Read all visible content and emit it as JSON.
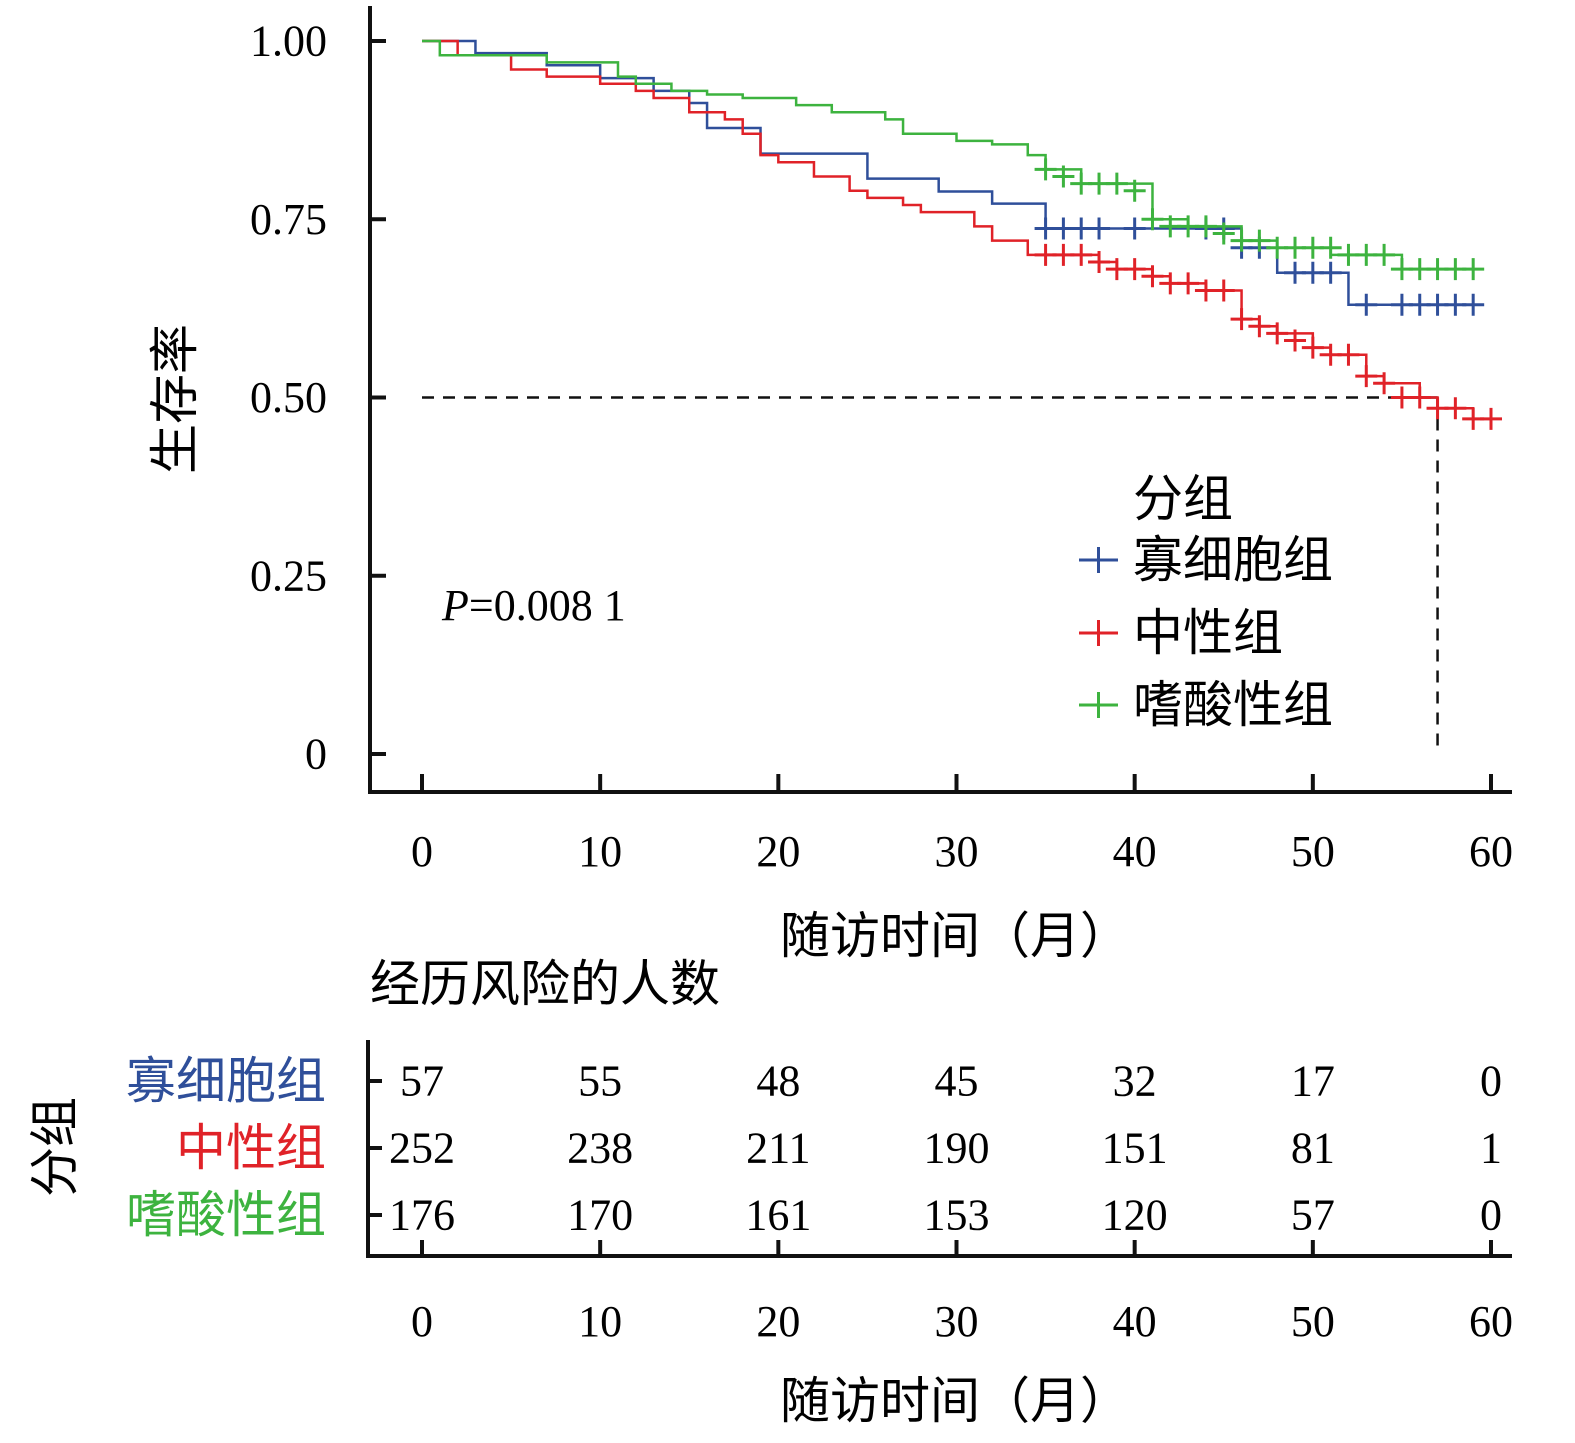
{
  "chart_data": {
    "type": "line",
    "subtype": "kaplan-meier",
    "title": "",
    "xlabel": "随访时间（月）",
    "ylabel": "生存率",
    "xlim": [
      0,
      60
    ],
    "ylim": [
      0,
      1
    ],
    "x_ticks": [
      0,
      10,
      20,
      30,
      40,
      50,
      60
    ],
    "y_ticks": [
      {
        "value": 0,
        "label": "0"
      },
      {
        "value": 0.25,
        "label": "0.25"
      },
      {
        "value": 0.5,
        "label": "0.50"
      },
      {
        "value": 0.75,
        "label": "0.75"
      },
      {
        "value": 1.0,
        "label": "1.00"
      }
    ],
    "grid": false,
    "annotation": {
      "p_italic": "P",
      "p_rest": "=0.008 1"
    },
    "median_reference": {
      "y": 0.5,
      "x": 57
    },
    "legend": {
      "title": "分组",
      "position": "right"
    },
    "series": [
      {
        "name": "寡细胞组",
        "color": "#2f4f9a",
        "steps": [
          [
            0,
            1.0
          ],
          [
            3,
            0.983
          ],
          [
            7,
            0.966
          ],
          [
            10,
            0.948
          ],
          [
            13,
            0.93
          ],
          [
            15,
            0.913
          ],
          [
            16,
            0.878
          ],
          [
            19,
            0.842
          ],
          [
            25,
            0.807
          ],
          [
            29,
            0.789
          ],
          [
            32,
            0.772
          ],
          [
            35,
            0.737
          ],
          [
            46,
            0.71
          ],
          [
            48,
            0.675
          ],
          [
            52,
            0.63
          ],
          [
            59,
            0.63
          ]
        ],
        "censored": [
          [
            35,
            0.737
          ],
          [
            36,
            0.737
          ],
          [
            37,
            0.737
          ],
          [
            38,
            0.737
          ],
          [
            40,
            0.737
          ],
          [
            44,
            0.737
          ],
          [
            45,
            0.737
          ],
          [
            46,
            0.71
          ],
          [
            47,
            0.71
          ],
          [
            49,
            0.675
          ],
          [
            50,
            0.675
          ],
          [
            51,
            0.675
          ],
          [
            53,
            0.63
          ],
          [
            55,
            0.63
          ],
          [
            56,
            0.63
          ],
          [
            57,
            0.63
          ],
          [
            58,
            0.63
          ],
          [
            59,
            0.63
          ]
        ]
      },
      {
        "name": "中性组",
        "color": "#e02228",
        "steps": [
          [
            0,
            1.0
          ],
          [
            2,
            0.98
          ],
          [
            5,
            0.96
          ],
          [
            7,
            0.95
          ],
          [
            10,
            0.94
          ],
          [
            12,
            0.93
          ],
          [
            13,
            0.92
          ],
          [
            15,
            0.9
          ],
          [
            17,
            0.89
          ],
          [
            18,
            0.87
          ],
          [
            19,
            0.84
          ],
          [
            20,
            0.83
          ],
          [
            22,
            0.81
          ],
          [
            24,
            0.79
          ],
          [
            25,
            0.78
          ],
          [
            27,
            0.77
          ],
          [
            28,
            0.76
          ],
          [
            31,
            0.74
          ],
          [
            32,
            0.72
          ],
          [
            34,
            0.7
          ],
          [
            38,
            0.69
          ],
          [
            39,
            0.68
          ],
          [
            41,
            0.67
          ],
          [
            42,
            0.66
          ],
          [
            44,
            0.65
          ],
          [
            46,
            0.61
          ],
          [
            47,
            0.6
          ],
          [
            48,
            0.59
          ],
          [
            50,
            0.57
          ],
          [
            51,
            0.56
          ],
          [
            53,
            0.53
          ],
          [
            54,
            0.52
          ],
          [
            56,
            0.5
          ],
          [
            57,
            0.485
          ],
          [
            59,
            0.47
          ],
          [
            60,
            0.47
          ]
        ],
        "censored": [
          [
            35,
            0.7
          ],
          [
            36,
            0.7
          ],
          [
            37,
            0.7
          ],
          [
            38,
            0.69
          ],
          [
            39,
            0.68
          ],
          [
            40,
            0.68
          ],
          [
            41,
            0.67
          ],
          [
            42,
            0.66
          ],
          [
            43,
            0.66
          ],
          [
            44,
            0.65
          ],
          [
            45,
            0.65
          ],
          [
            46,
            0.61
          ],
          [
            47,
            0.6
          ],
          [
            48,
            0.59
          ],
          [
            49,
            0.58
          ],
          [
            50,
            0.57
          ],
          [
            51,
            0.56
          ],
          [
            52,
            0.56
          ],
          [
            53,
            0.53
          ],
          [
            54,
            0.52
          ],
          [
            55,
            0.5
          ],
          [
            56,
            0.5
          ],
          [
            57,
            0.485
          ],
          [
            58,
            0.485
          ],
          [
            59,
            0.47
          ],
          [
            60,
            0.47
          ]
        ]
      },
      {
        "name": "嗜酸性组",
        "color": "#3db33f",
        "steps": [
          [
            0,
            1.0
          ],
          [
            1,
            0.98
          ],
          [
            7,
            0.97
          ],
          [
            11,
            0.95
          ],
          [
            12,
            0.94
          ],
          [
            14,
            0.93
          ],
          [
            16,
            0.925
          ],
          [
            18,
            0.92
          ],
          [
            21,
            0.91
          ],
          [
            23,
            0.9
          ],
          [
            26,
            0.89
          ],
          [
            27,
            0.87
          ],
          [
            30,
            0.86
          ],
          [
            32,
            0.855
          ],
          [
            34,
            0.84
          ],
          [
            35,
            0.82
          ],
          [
            37,
            0.8
          ],
          [
            41,
            0.76
          ],
          [
            41,
            0.75
          ],
          [
            43,
            0.74
          ],
          [
            46,
            0.72
          ],
          [
            48,
            0.71
          ],
          [
            51,
            0.7
          ],
          [
            55,
            0.68
          ],
          [
            59,
            0.68
          ]
        ],
        "censored": [
          [
            35,
            0.82
          ],
          [
            36,
            0.81
          ],
          [
            37,
            0.8
          ],
          [
            38,
            0.8
          ],
          [
            39,
            0.8
          ],
          [
            40,
            0.79
          ],
          [
            41,
            0.75
          ],
          [
            42,
            0.74
          ],
          [
            43,
            0.74
          ],
          [
            44,
            0.74
          ],
          [
            45,
            0.73
          ],
          [
            46,
            0.72
          ],
          [
            47,
            0.72
          ],
          [
            48,
            0.71
          ],
          [
            49,
            0.71
          ],
          [
            50,
            0.71
          ],
          [
            51,
            0.71
          ],
          [
            52,
            0.7
          ],
          [
            53,
            0.7
          ],
          [
            54,
            0.7
          ],
          [
            55,
            0.68
          ],
          [
            56,
            0.68
          ],
          [
            57,
            0.68
          ],
          [
            58,
            0.68
          ],
          [
            59,
            0.68
          ]
        ]
      }
    ],
    "risk_table": {
      "title": "经历风险的人数",
      "group_axis_label": "分组",
      "xlabel": "随访时间（月）",
      "times": [
        0,
        10,
        20,
        30,
        40,
        50,
        60
      ],
      "rows": [
        {
          "name": "寡细胞组",
          "color": "#2f4f9a",
          "values": [
            "57",
            "55",
            "48",
            "45",
            "32",
            "17",
            "0"
          ]
        },
        {
          "name": "中性组",
          "color": "#e02228",
          "values": [
            "252",
            "238",
            "211",
            "190",
            "151",
            "81",
            "1"
          ]
        },
        {
          "name": "嗜酸性组",
          "color": "#3db33f",
          "values": [
            "176",
            "170",
            "161",
            "153",
            "120",
            "57",
            "0"
          ]
        }
      ]
    }
  }
}
